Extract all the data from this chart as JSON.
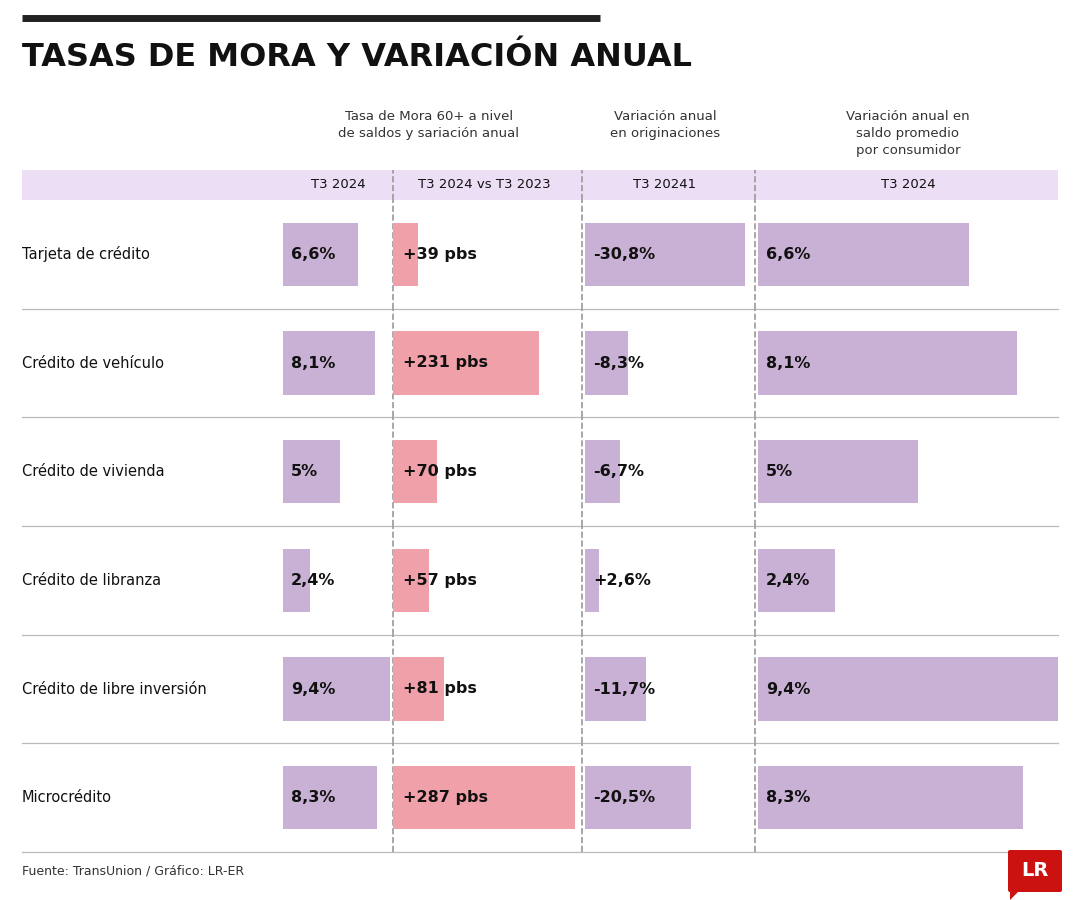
{
  "title": "TASAS DE MORA Y VARIACIÓN ANUAL",
  "col_headers": {
    "col1_title": "Tasa de Mora 60+ a nivel\nde saldos y sariación anual",
    "col2_title": "Variación anual\nen originaciones",
    "col3_title": "Variación anual en\nsaldo promedio\npor consumidor"
  },
  "subheaders": [
    "T3 2024",
    "T3 2024 vs T3 2023",
    "T3 20241",
    "T3 2024"
  ],
  "rows": [
    {
      "label": "Tarjeta de crédito",
      "tasa": "6,6%",
      "variacion": "+39 pbs",
      "originaciones": "-30,8%",
      "saldo": "6,6%",
      "tasa_val": 6.6,
      "variacion_val": 39,
      "originaciones_val": 30.8,
      "saldo_val": 6.6
    },
    {
      "label": "Crédito de vehículo",
      "tasa": "8,1%",
      "variacion": "+231 pbs",
      "originaciones": "-8,3%",
      "saldo": "8,1%",
      "tasa_val": 8.1,
      "variacion_val": 231,
      "originaciones_val": 8.3,
      "saldo_val": 8.1
    },
    {
      "label": "Crédito de vivienda",
      "tasa": "5%",
      "variacion": "+70 pbs",
      "originaciones": "-6,7%",
      "saldo": "5%",
      "tasa_val": 5.0,
      "variacion_val": 70,
      "originaciones_val": 6.7,
      "saldo_val": 5.0
    },
    {
      "label": "Crédito de libranza",
      "tasa": "2,4%",
      "variacion": "+57 pbs",
      "originaciones": "+2,6%",
      "saldo": "2,4%",
      "tasa_val": 2.4,
      "variacion_val": 57,
      "originaciones_val": 2.6,
      "saldo_val": 2.4
    },
    {
      "label": "Crédito de libre inversión",
      "tasa": "9,4%",
      "variacion": "+81 pbs",
      "originaciones": "-11,7%",
      "saldo": "9,4%",
      "tasa_val": 9.4,
      "variacion_val": 81,
      "originaciones_val": 11.7,
      "saldo_val": 9.4
    },
    {
      "label": "Microcrédito",
      "tasa": "8,3%",
      "variacion": "+287 pbs",
      "originaciones": "-20,5%",
      "saldo": "8,3%",
      "tasa_val": 8.3,
      "variacion_val": 287,
      "originaciones_val": 20.5,
      "saldo_val": 8.3
    }
  ],
  "colors": {
    "purple_bar": "#c9b0d5",
    "pink_bar": "#f0a0a8",
    "header_bg": "#ecdff5",
    "row_line": "#bbbbbb",
    "dashed_line": "#999999",
    "bg": "#ffffff",
    "title_bar": "#222222",
    "text_dark": "#111111",
    "text_label": "#333333",
    "text_subhdr": "#666666",
    "lr_red": "#cc1111",
    "lr_text": "#ffffff"
  },
  "footer": "Fuente: TransUnion / Gráfico: LR-ER",
  "max_variacion": 287,
  "max_tasa": 9.4,
  "max_originaciones": 30.8,
  "max_saldo": 9.4
}
